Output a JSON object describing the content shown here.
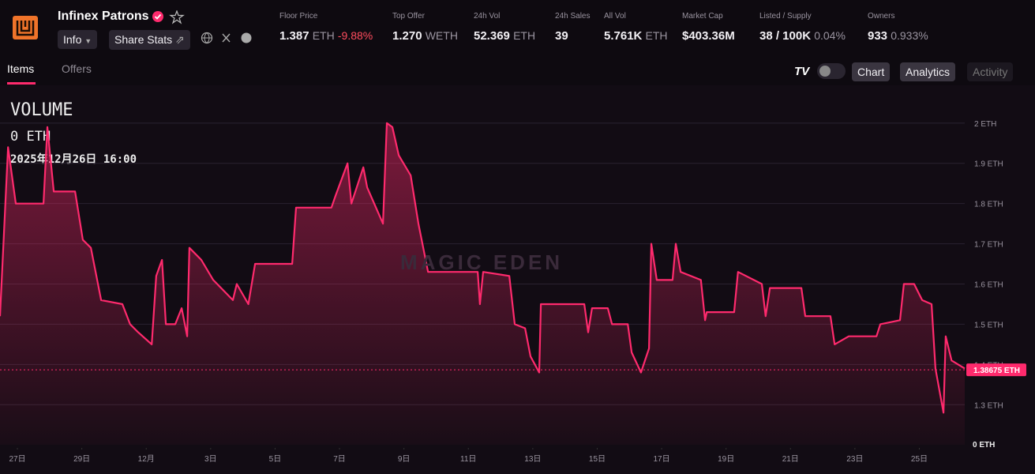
{
  "header": {
    "collection_name": "Infinex Patrons",
    "buttons": [
      "Info",
      "Share Stats"
    ],
    "stats": [
      {
        "label": "Floor Price",
        "value": "1.387",
        "unit": "ETH",
        "change": "-9.88%"
      },
      {
        "label": "Top Offer",
        "value": "1.270",
        "unit": "WETH"
      },
      {
        "label": "24h Vol",
        "value": "52.369",
        "unit": "ETH"
      },
      {
        "label": "24h Sales",
        "value": "39"
      },
      {
        "label": "All Vol",
        "value": "5.761K",
        "unit": "ETH"
      },
      {
        "label": "Market Cap",
        "value": "$403.36M"
      },
      {
        "label": "Listed / Supply",
        "value": "38 / 100K",
        "unit": "0.04%"
      },
      {
        "label": "Owners",
        "value": "933",
        "unit": "0.933%"
      }
    ]
  },
  "tabs": [
    "Items",
    "Offers"
  ],
  "view_buttons": [
    "Chart",
    "Analytics",
    "Activity"
  ],
  "chart_data": {
    "type": "line",
    "title": "VOLUME",
    "volume_value": "0 ETH",
    "timestamp": "2025年12月26日 16:00",
    "watermark": "MAGIC EDEN",
    "volume_axis_label": "0 ETH",
    "color": "#ff2a6d",
    "grid": true,
    "xlim": [
      -0.54,
      29.41
    ],
    "xticks": [
      {
        "value": 0,
        "label": "27日"
      },
      {
        "value": 2,
        "label": "29日"
      },
      {
        "value": 4,
        "label": "12月"
      },
      {
        "value": 6,
        "label": "3日"
      },
      {
        "value": 8,
        "label": "5日"
      },
      {
        "value": 10,
        "label": "7日"
      },
      {
        "value": 12,
        "label": "9日"
      },
      {
        "value": 14,
        "label": "11日"
      },
      {
        "value": 16,
        "label": "13日"
      },
      {
        "value": 18,
        "label": "15日"
      },
      {
        "value": 20,
        "label": "17日"
      },
      {
        "value": 22,
        "label": "19日"
      },
      {
        "value": 24,
        "label": "21日"
      },
      {
        "value": 26,
        "label": "23日"
      },
      {
        "value": 28,
        "label": "25日"
      }
    ],
    "ylim": [
      1.22,
      2.09
    ],
    "yticks": [
      {
        "value": 1.3,
        "label": "1.3 ETH"
      },
      {
        "value": 1.4,
        "label": "1.4 ETH"
      },
      {
        "value": 1.5,
        "label": "1.5 ETH"
      },
      {
        "value": 1.6,
        "label": "1.6 ETH"
      },
      {
        "value": 1.7,
        "label": "1.7 ETH"
      },
      {
        "value": 1.8,
        "label": "1.8 ETH"
      },
      {
        "value": 1.9,
        "label": "1.9 ETH"
      },
      {
        "value": 2,
        "label": "2 ETH"
      }
    ],
    "last_price": {
      "value": 1.38675,
      "label": "1.38675 ETH"
    },
    "x": [
      -0.54,
      -0.29,
      -0.05,
      0.81,
      0.93,
      1.13,
      1.79,
      2.03,
      2.28,
      2.6,
      3.26,
      3.5,
      3.75,
      4.17,
      4.31,
      4.49,
      4.61,
      4.9,
      5.1,
      5.27,
      5.34,
      5.71,
      6.08,
      6.69,
      6.81,
      7.17,
      7.38,
      8.53,
      8.65,
      9.75,
      9.88,
      10.25,
      10.37,
      10.74,
      10.86,
      11.35,
      11.47,
      11.64,
      11.84,
      12.21,
      12.45,
      12.75,
      14.29,
      14.36,
      14.46,
      15.27,
      15.44,
      15.76,
      15.93,
      16.2,
      16.25,
      17.6,
      17.72,
      17.84,
      18.33,
      18.46,
      18.95,
      19.07,
      19.36,
      19.61,
      19.68,
      19.85,
      20.34,
      20.44,
      20.59,
      21.22,
      21.35,
      21.4,
      22.25,
      22.37,
      23.11,
      23.23,
      23.36,
      24.34,
      24.46,
      25.24,
      25.37,
      25.81,
      26.67,
      26.79,
      27.4,
      27.52,
      27.84,
      28.09,
      28.38,
      28.5,
      28.75,
      28.82,
      29.0,
      29.41
    ],
    "values": [
      1.52,
      1.94,
      1.8,
      1.8,
      1.99,
      1.83,
      1.83,
      1.71,
      1.69,
      1.56,
      1.55,
      1.5,
      1.48,
      1.45,
      1.62,
      1.66,
      1.5,
      1.5,
      1.54,
      1.47,
      1.69,
      1.66,
      1.61,
      1.56,
      1.6,
      1.55,
      1.65,
      1.65,
      1.79,
      1.79,
      1.82,
      1.9,
      1.8,
      1.89,
      1.84,
      1.75,
      2.0,
      1.99,
      1.92,
      1.87,
      1.75,
      1.63,
      1.63,
      1.55,
      1.63,
      1.62,
      1.5,
      1.49,
      1.42,
      1.38,
      1.55,
      1.55,
      1.48,
      1.54,
      1.54,
      1.5,
      1.5,
      1.43,
      1.38,
      1.44,
      1.7,
      1.61,
      1.61,
      1.7,
      1.63,
      1.61,
      1.51,
      1.53,
      1.53,
      1.63,
      1.6,
      1.52,
      1.59,
      1.59,
      1.52,
      1.52,
      1.45,
      1.47,
      1.47,
      1.5,
      1.51,
      1.6,
      1.6,
      1.56,
      1.55,
      1.39,
      1.28,
      1.47,
      1.41,
      1.39
    ]
  }
}
